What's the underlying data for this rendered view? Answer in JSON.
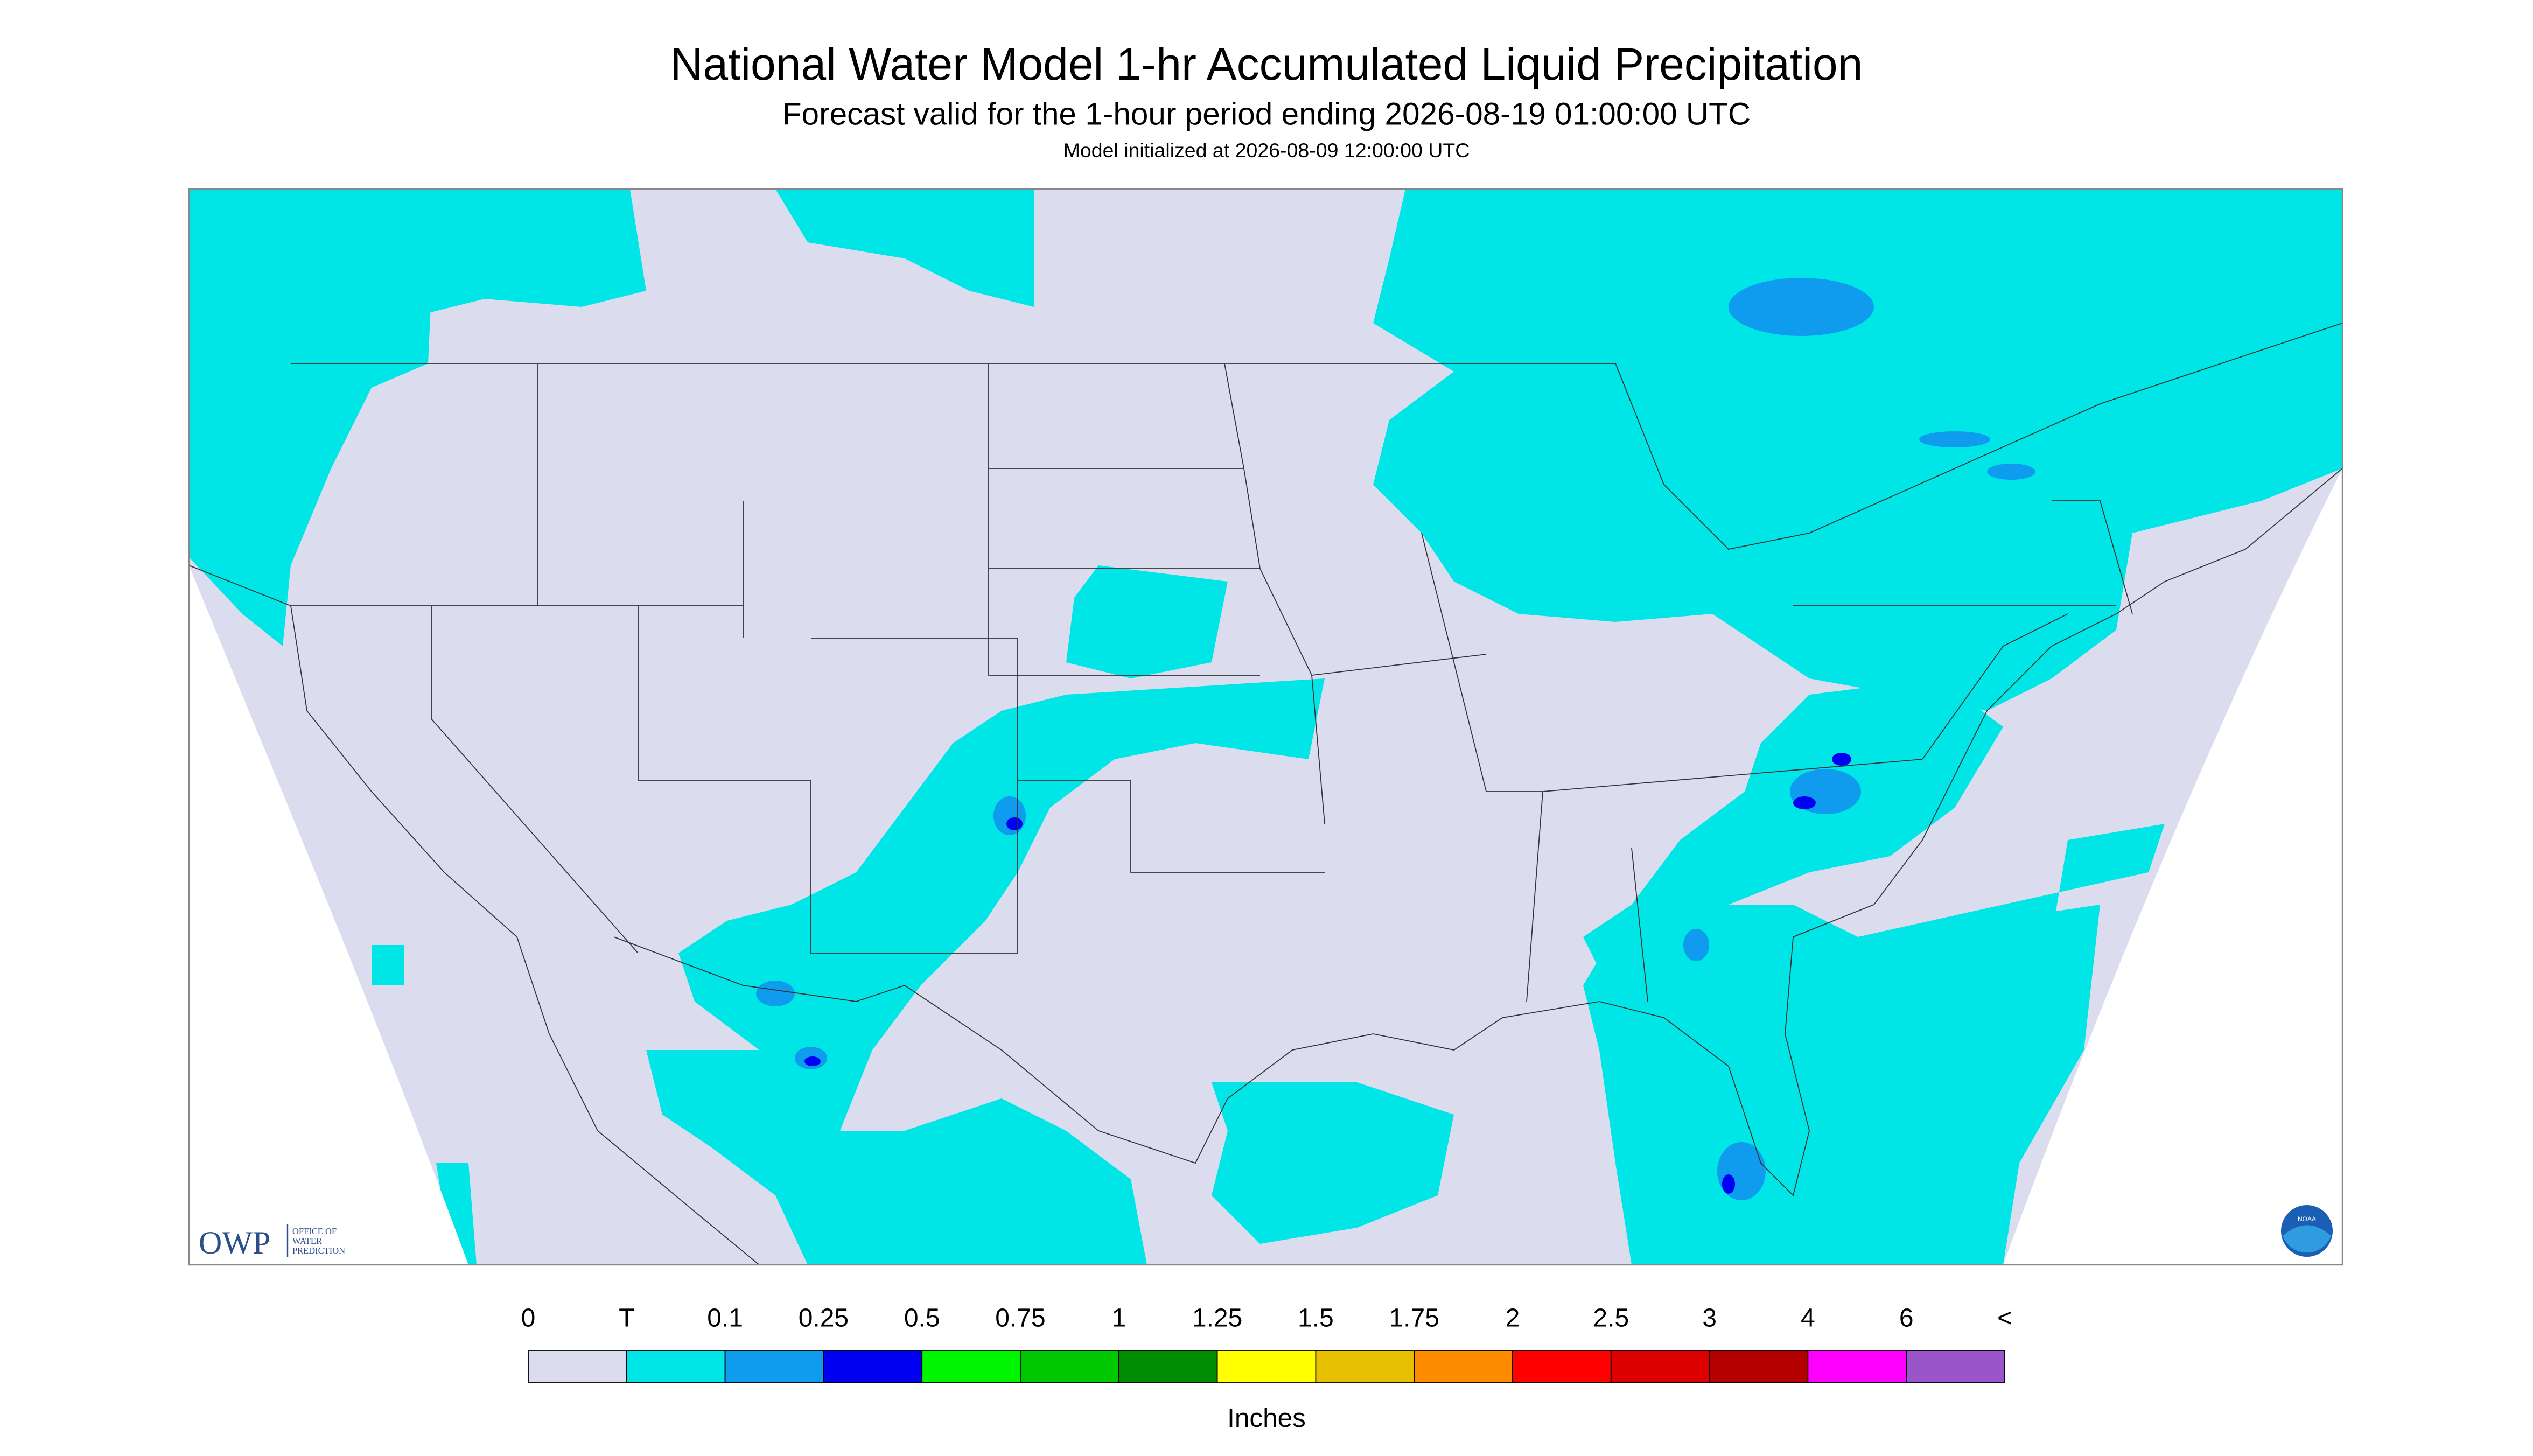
{
  "header": {
    "title": "National Water Model 1-hr Accumulated Liquid Precipitation",
    "subtitle": "Forecast valid for the 1-hour period ending 2026-08-19 01:00:00 UTC",
    "initialized": "Model initialized at 2026-08-09 12:00:00 UTC"
  },
  "legend": {
    "labels": [
      "0",
      "T",
      "0.1",
      "0.25",
      "0.5",
      "0.75",
      "1",
      "1.25",
      "1.5",
      "1.75",
      "2",
      "2.5",
      "3",
      "4",
      "6",
      "<"
    ],
    "colors": [
      "#dcdcef",
      "#00e6e6",
      "#0f9cee",
      "#0000f2",
      "#00f500",
      "#00c800",
      "#008c00",
      "#ffff00",
      "#e6c000",
      "#ff8c00",
      "#ff0000",
      "#dc0000",
      "#b40000",
      "#ff00ff",
      "#9955c9"
    ],
    "unit": "Inches"
  },
  "logos": {
    "owp": "OWP",
    "owp_caption": [
      "OFFICE OF",
      "WATER",
      "PREDICTION"
    ],
    "noaa": "NOAA"
  }
}
